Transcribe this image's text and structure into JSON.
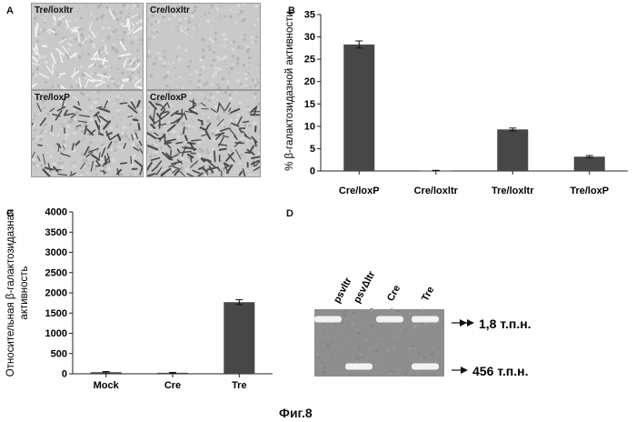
{
  "panel_a": {
    "label": "A",
    "images": [
      {
        "caption": "Tre/loxltr",
        "cells": "sparse"
      },
      {
        "caption": "Cre/loxltr",
        "cells": "none"
      },
      {
        "caption": "Tre/loxP",
        "cells": "medium"
      },
      {
        "caption": "Cre/loxP",
        "cells": "dense"
      }
    ]
  },
  "panel_b": {
    "label": "B",
    "chart_data": {
      "type": "bar",
      "categories": [
        "Cre/loxP",
        "Cre/loxltr",
        "Tre/loxltr",
        "Tre/loxP"
      ],
      "values": [
        28.3,
        0.1,
        9.3,
        3.2
      ],
      "errors": [
        0.8,
        0.05,
        0.3,
        0.25
      ],
      "ylabel": "% β-галактозидазной активности",
      "ylim": [
        0,
        35
      ],
      "yticks": [
        0,
        5,
        10,
        15,
        20,
        25,
        30,
        35
      ],
      "bar_color": "#474747"
    }
  },
  "panel_c": {
    "label": "C",
    "chart_data": {
      "type": "bar",
      "categories": [
        "Mock",
        "Cre",
        "Tre"
      ],
      "values": [
        40,
        25,
        1770
      ],
      "errors": [
        15,
        10,
        60
      ],
      "ylabel_line1": "Относительная β-галактозидазная",
      "ylabel_line2": "активность",
      "ylim": [
        0,
        4000
      ],
      "yticks": [
        0,
        500,
        1000,
        1500,
        2000,
        2500,
        3000,
        3500,
        4000
      ],
      "bar_color": "#474747"
    }
  },
  "panel_d": {
    "label": "D",
    "lanes": [
      "psvltr",
      "psvΔltr",
      "Cre",
      "Tre"
    ],
    "band_labels": [
      "1,8 т.п.н.",
      "456 т.п.н."
    ],
    "bands": [
      {
        "lane": 0,
        "size": "1,8 т.п.н."
      },
      {
        "lane": 1,
        "size": "456 т.п.н."
      },
      {
        "lane": 2,
        "size": "1,8 т.п.н."
      },
      {
        "lane": 3,
        "size": "1,8 т.п.н."
      },
      {
        "lane": 3,
        "size": "456 т.п.н."
      }
    ]
  },
  "figure_caption": "Фиг.8"
}
